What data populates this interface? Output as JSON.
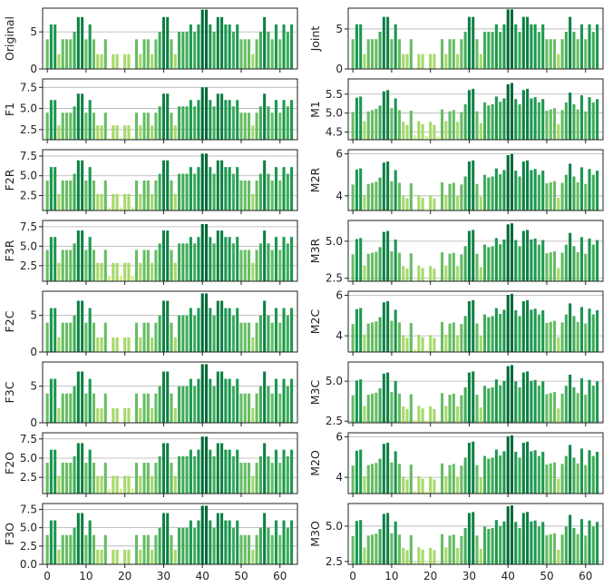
{
  "chart_data": {
    "type": "bar",
    "base_sequence": [
      4,
      6,
      6,
      2,
      4,
      4,
      4,
      5,
      7,
      7,
      4,
      6,
      4,
      2,
      2,
      4,
      0,
      2,
      2,
      0,
      2,
      2,
      0,
      4,
      2,
      4,
      4,
      2,
      4,
      5,
      7,
      7,
      4,
      2,
      5,
      5,
      5,
      6,
      5,
      6,
      8,
      8,
      6,
      5,
      7,
      7,
      6,
      6,
      5,
      6,
      4,
      4,
      4,
      2,
      4,
      5,
      7,
      5,
      4,
      6,
      4,
      6,
      5,
      6
    ],
    "xticks": [
      "0",
      "10",
      "20",
      "30",
      "40",
      "50",
      "60"
    ],
    "xtick_values": [
      0,
      10,
      20,
      30,
      40,
      50,
      60
    ],
    "grid": "horizontal",
    "colormap": [
      "#d9ef8b",
      "#a6d96a",
      "#66bd63",
      "#1a9850",
      "#006837"
    ],
    "panels": [
      {
        "id": "original",
        "ylabel": "Original",
        "column": "left",
        "ylim": [
          0,
          8.2
        ],
        "yticks": [
          0,
          5
        ],
        "ytick_labels": [
          "0",
          "5"
        ],
        "scale": 1,
        "offset": 0,
        "noise": 0
      },
      {
        "id": "joint",
        "ylabel": "Joint",
        "column": "right",
        "ylim": [
          0,
          7.6
        ],
        "yticks": [
          0,
          5
        ],
        "ytick_labels": [
          "0",
          "5"
        ],
        "scale": 0.93,
        "offset": 0,
        "noise": 0
      },
      {
        "id": "f1",
        "ylabel": "F1",
        "column": "left",
        "ylim": [
          1.3,
          8.5
        ],
        "yticks": [
          2.5,
          5.0,
          7.5
        ],
        "ytick_labels": [
          "2.5",
          "5.0",
          "7.5"
        ],
        "scale": 0.75,
        "offset": 1.5,
        "noise": 0
      },
      {
        "id": "m1",
        "ylabel": "M1",
        "column": "right",
        "ylim": [
          4.3,
          5.9
        ],
        "yticks": [
          4.5,
          5.0,
          5.5
        ],
        "ytick_labels": [
          "4.5",
          "5.0",
          "5.5"
        ],
        "scale": 0.17,
        "offset": 4.4,
        "noise": 0.05
      },
      {
        "id": "f2r",
        "ylabel": "F2R",
        "column": "left",
        "ylim": [
          0.6,
          8.3
        ],
        "yticks": [
          2.5,
          5.0,
          7.5
        ],
        "ytick_labels": [
          "2.5",
          "5.0",
          "7.5"
        ],
        "scale": 0.85,
        "offset": 1.0,
        "noise": 0
      },
      {
        "id": "m2r",
        "ylabel": "M2R",
        "column": "right",
        "ylim": [
          3.3,
          6.2
        ],
        "yticks": [
          4,
          6
        ],
        "ytick_labels": [
          "4",
          "6"
        ],
        "scale": 0.33,
        "offset": 3.3,
        "noise": 0.08
      },
      {
        "id": "f3r",
        "ylabel": "F3R",
        "column": "left",
        "ylim": [
          0.5,
          8.3
        ],
        "yticks": [
          2.5,
          5.0,
          7.5
        ],
        "ytick_labels": [
          "2.5",
          "5.0",
          "7.5"
        ],
        "scale": 0.83,
        "offset": 1.2,
        "noise": 0
      },
      {
        "id": "m3r",
        "ylabel": "M3R",
        "column": "right",
        "ylim": [
          2.3,
          6.4
        ],
        "yticks": [
          2.5,
          5.0
        ],
        "ytick_labels": [
          "2.5",
          "5.0"
        ],
        "scale": 0.48,
        "offset": 2.3,
        "noise": 0.1
      },
      {
        "id": "f2c",
        "ylabel": "F2C",
        "column": "left",
        "ylim": [
          0,
          8.3
        ],
        "yticks": [
          0,
          5
        ],
        "ytick_labels": [
          "0",
          "5"
        ],
        "scale": 1,
        "offset": 0,
        "noise": 0
      },
      {
        "id": "m2c",
        "ylabel": "M2C",
        "column": "right",
        "ylim": [
          3.2,
          6.2
        ],
        "yticks": [
          4,
          6
        ],
        "ytick_labels": [
          "4",
          "6"
        ],
        "scale": 0.34,
        "offset": 3.3,
        "noise": 0.08
      },
      {
        "id": "f3c",
        "ylabel": "F3C",
        "column": "left",
        "ylim": [
          0,
          8.3
        ],
        "yticks": [
          0,
          5
        ],
        "ytick_labels": [
          "0",
          "5"
        ],
        "scale": 1,
        "offset": 0,
        "noise": 0
      },
      {
        "id": "m3c",
        "ylabel": "M3C",
        "column": "right",
        "ylim": [
          2.4,
          6.2
        ],
        "yticks": [
          2.5,
          5.0
        ],
        "ytick_labels": [
          "2.5",
          "5.0"
        ],
        "scale": 0.43,
        "offset": 2.5,
        "noise": 0.1
      },
      {
        "id": "f2o",
        "ylabel": "F2O",
        "column": "left",
        "ylim": [
          0.4,
          8.3
        ],
        "yticks": [
          2.5,
          5.0,
          7.5
        ],
        "ytick_labels": [
          "2.5",
          "5.0",
          "7.5"
        ],
        "scale": 0.85,
        "offset": 1.0,
        "noise": 0
      },
      {
        "id": "m2o",
        "ylabel": "M2O",
        "column": "right",
        "ylim": [
          3.2,
          6.2
        ],
        "yticks": [
          4,
          6
        ],
        "ytick_labels": [
          "4",
          "6"
        ],
        "scale": 0.34,
        "offset": 3.3,
        "noise": 0.08
      },
      {
        "id": "f3o",
        "ylabel": "F3O",
        "column": "left",
        "ylim": [
          0,
          8.3
        ],
        "yticks": [
          0.0,
          2.5,
          5.0,
          7.5
        ],
        "ytick_labels": [
          "0.0",
          "2.5",
          "5.0",
          "7.5"
        ],
        "scale": 1,
        "offset": 0,
        "noise": 0
      },
      {
        "id": "m3o",
        "ylabel": "M3O",
        "column": "right",
        "ylim": [
          2.3,
          6.6
        ],
        "yticks": [
          2.5,
          5.0
        ],
        "ytick_labels": [
          "2.5",
          "5.0"
        ],
        "scale": 0.5,
        "offset": 2.4,
        "noise": 0.1
      }
    ]
  }
}
